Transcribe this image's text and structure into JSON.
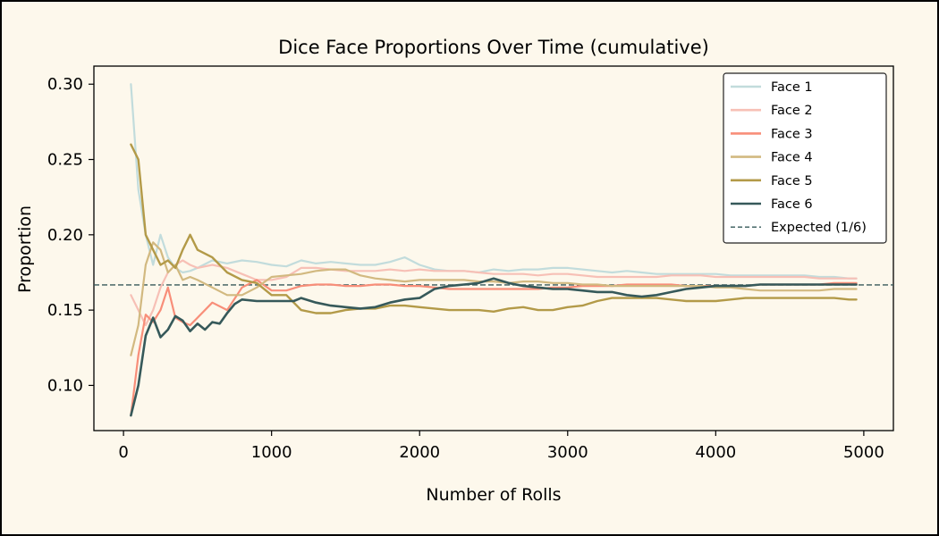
{
  "chart_data": {
    "type": "line",
    "title": "Dice Face Proportions Over Time (cumulative)",
    "xlabel": "Number of Rolls",
    "ylabel": "Proportion",
    "xlim": [
      -200,
      5200
    ],
    "ylim": [
      0.07,
      0.312
    ],
    "xticks": [
      0,
      1000,
      2000,
      3000,
      4000,
      5000
    ],
    "yticks": [
      0.1,
      0.15,
      0.2,
      0.25,
      0.3
    ],
    "grid": false,
    "legend_position": "top-right",
    "series": [
      {
        "name": "Face 1",
        "color": "#c2dcdc",
        "width": 2.2,
        "x": [
          50,
          100,
          150,
          200,
          250,
          300,
          350,
          400,
          450,
          500,
          600,
          700,
          800,
          900,
          1000,
          1100,
          1200,
          1300,
          1400,
          1500,
          1600,
          1700,
          1800,
          1900,
          2000,
          2100,
          2200,
          2300,
          2400,
          2500,
          2600,
          2700,
          2800,
          2900,
          3000,
          3100,
          3200,
          3300,
          3400,
          3500,
          3600,
          3700,
          3800,
          3900,
          4000,
          4100,
          4200,
          4300,
          4400,
          4500,
          4600,
          4700,
          4800,
          4900,
          4950
        ],
        "y": [
          0.3,
          0.23,
          0.2,
          0.18,
          0.2,
          0.185,
          0.178,
          0.175,
          0.176,
          0.178,
          0.183,
          0.181,
          0.183,
          0.182,
          0.18,
          0.179,
          0.183,
          0.181,
          0.182,
          0.181,
          0.18,
          0.18,
          0.182,
          0.185,
          0.18,
          0.177,
          0.176,
          0.176,
          0.175,
          0.177,
          0.176,
          0.177,
          0.177,
          0.178,
          0.178,
          0.177,
          0.176,
          0.175,
          0.176,
          0.175,
          0.174,
          0.174,
          0.174,
          0.174,
          0.174,
          0.173,
          0.173,
          0.173,
          0.173,
          0.173,
          0.173,
          0.172,
          0.172,
          0.171,
          0.171
        ]
      },
      {
        "name": "Face 2",
        "color": "#f7c0b6",
        "width": 2.2,
        "x": [
          50,
          100,
          150,
          200,
          250,
          300,
          350,
          400,
          450,
          500,
          600,
          700,
          800,
          900,
          1000,
          1100,
          1200,
          1300,
          1400,
          1500,
          1600,
          1700,
          1800,
          1900,
          2000,
          2100,
          2200,
          2300,
          2400,
          2500,
          2600,
          2700,
          2800,
          2900,
          3000,
          3100,
          3200,
          3300,
          3400,
          3500,
          3600,
          3700,
          3800,
          3900,
          4000,
          4100,
          4200,
          4300,
          4400,
          4500,
          4600,
          4700,
          4800,
          4900,
          4950
        ],
        "y": [
          0.16,
          0.15,
          0.14,
          0.15,
          0.165,
          0.175,
          0.18,
          0.183,
          0.18,
          0.178,
          0.18,
          0.178,
          0.174,
          0.17,
          0.17,
          0.172,
          0.178,
          0.178,
          0.177,
          0.176,
          0.176,
          0.176,
          0.177,
          0.176,
          0.177,
          0.176,
          0.176,
          0.176,
          0.175,
          0.174,
          0.174,
          0.174,
          0.173,
          0.174,
          0.174,
          0.173,
          0.172,
          0.172,
          0.172,
          0.172,
          0.172,
          0.173,
          0.173,
          0.173,
          0.172,
          0.172,
          0.172,
          0.172,
          0.172,
          0.172,
          0.172,
          0.171,
          0.171,
          0.171,
          0.171
        ]
      },
      {
        "name": "Face 3",
        "color": "#f88e79",
        "width": 2.2,
        "x": [
          50,
          100,
          150,
          200,
          250,
          300,
          350,
          400,
          450,
          500,
          600,
          700,
          800,
          900,
          1000,
          1100,
          1200,
          1300,
          1400,
          1500,
          1600,
          1700,
          1800,
          1900,
          2000,
          2100,
          2200,
          2300,
          2400,
          2500,
          2600,
          2700,
          2800,
          2900,
          3000,
          3100,
          3200,
          3300,
          3400,
          3500,
          3600,
          3700,
          3800,
          3900,
          4000,
          4100,
          4200,
          4300,
          4400,
          4500,
          4600,
          4700,
          4800,
          4900,
          4950
        ],
        "y": [
          0.08,
          0.12,
          0.147,
          0.142,
          0.15,
          0.165,
          0.145,
          0.142,
          0.14,
          0.145,
          0.155,
          0.15,
          0.165,
          0.17,
          0.163,
          0.163,
          0.166,
          0.167,
          0.167,
          0.166,
          0.166,
          0.167,
          0.167,
          0.166,
          0.166,
          0.165,
          0.164,
          0.164,
          0.164,
          0.164,
          0.164,
          0.164,
          0.164,
          0.165,
          0.165,
          0.166,
          0.166,
          0.166,
          0.167,
          0.167,
          0.167,
          0.167,
          0.166,
          0.166,
          0.166,
          0.166,
          0.166,
          0.167,
          0.167,
          0.167,
          0.167,
          0.167,
          0.168,
          0.168,
          0.168
        ]
      },
      {
        "name": "Face 4",
        "color": "#d2b980",
        "width": 2.2,
        "x": [
          50,
          100,
          150,
          200,
          250,
          300,
          350,
          400,
          450,
          500,
          600,
          700,
          800,
          900,
          1000,
          1100,
          1200,
          1300,
          1400,
          1500,
          1600,
          1700,
          1800,
          1900,
          2000,
          2100,
          2200,
          2300,
          2400,
          2500,
          2600,
          2700,
          2800,
          2900,
          3000,
          3100,
          3200,
          3300,
          3400,
          3500,
          3600,
          3700,
          3800,
          3900,
          4000,
          4100,
          4200,
          4300,
          4400,
          4500,
          4600,
          4700,
          4800,
          4900,
          4950
        ],
        "y": [
          0.12,
          0.14,
          0.18,
          0.195,
          0.19,
          0.175,
          0.18,
          0.17,
          0.172,
          0.17,
          0.165,
          0.16,
          0.16,
          0.165,
          0.172,
          0.173,
          0.174,
          0.176,
          0.177,
          0.177,
          0.173,
          0.171,
          0.17,
          0.169,
          0.17,
          0.17,
          0.17,
          0.17,
          0.169,
          0.169,
          0.168,
          0.169,
          0.169,
          0.168,
          0.168,
          0.167,
          0.167,
          0.166,
          0.166,
          0.166,
          0.166,
          0.166,
          0.166,
          0.166,
          0.165,
          0.165,
          0.164,
          0.163,
          0.163,
          0.163,
          0.163,
          0.163,
          0.164,
          0.164,
          0.164
        ]
      },
      {
        "name": "Face 5",
        "color": "#b39a48",
        "width": 2.4,
        "x": [
          50,
          100,
          150,
          200,
          250,
          300,
          350,
          400,
          450,
          500,
          600,
          700,
          800,
          900,
          1000,
          1100,
          1200,
          1300,
          1400,
          1500,
          1600,
          1700,
          1800,
          1900,
          2000,
          2100,
          2200,
          2300,
          2400,
          2500,
          2600,
          2700,
          2800,
          2900,
          3000,
          3100,
          3200,
          3300,
          3400,
          3500,
          3600,
          3700,
          3800,
          3900,
          4000,
          4100,
          4200,
          4300,
          4400,
          4500,
          4600,
          4700,
          4800,
          4900,
          4950
        ],
        "y": [
          0.26,
          0.25,
          0.2,
          0.19,
          0.18,
          0.183,
          0.178,
          0.19,
          0.2,
          0.19,
          0.185,
          0.175,
          0.17,
          0.168,
          0.16,
          0.16,
          0.15,
          0.148,
          0.148,
          0.15,
          0.151,
          0.151,
          0.153,
          0.153,
          0.152,
          0.151,
          0.15,
          0.15,
          0.15,
          0.149,
          0.151,
          0.152,
          0.15,
          0.15,
          0.152,
          0.153,
          0.156,
          0.158,
          0.158,
          0.158,
          0.158,
          0.157,
          0.156,
          0.156,
          0.156,
          0.157,
          0.158,
          0.158,
          0.158,
          0.158,
          0.158,
          0.158,
          0.158,
          0.157,
          0.157
        ]
      },
      {
        "name": "Face 6",
        "color": "#36595a",
        "width": 2.6,
        "x": [
          50,
          100,
          150,
          200,
          250,
          300,
          350,
          400,
          450,
          500,
          550,
          600,
          650,
          700,
          750,
          800,
          900,
          1000,
          1100,
          1150,
          1200,
          1300,
          1400,
          1500,
          1600,
          1700,
          1800,
          1900,
          2000,
          2100,
          2200,
          2300,
          2400,
          2500,
          2600,
          2700,
          2800,
          2900,
          3000,
          3100,
          3200,
          3300,
          3400,
          3500,
          3600,
          3700,
          3800,
          3900,
          4000,
          4100,
          4200,
          4300,
          4400,
          4500,
          4600,
          4700,
          4800,
          4900,
          4950
        ],
        "y": [
          0.08,
          0.1,
          0.133,
          0.145,
          0.132,
          0.137,
          0.146,
          0.143,
          0.136,
          0.141,
          0.137,
          0.142,
          0.141,
          0.148,
          0.154,
          0.157,
          0.156,
          0.156,
          0.156,
          0.156,
          0.158,
          0.155,
          0.153,
          0.152,
          0.151,
          0.152,
          0.155,
          0.157,
          0.158,
          0.164,
          0.166,
          0.167,
          0.168,
          0.171,
          0.168,
          0.166,
          0.165,
          0.164,
          0.164,
          0.163,
          0.162,
          0.162,
          0.16,
          0.159,
          0.16,
          0.162,
          0.164,
          0.165,
          0.166,
          0.166,
          0.166,
          0.167,
          0.167,
          0.167,
          0.167,
          0.167,
          0.167,
          0.167,
          0.167
        ]
      }
    ],
    "reference_line": {
      "name": "Expected (1/6)",
      "y": 0.1667,
      "color": "#36595a",
      "dashed": true
    }
  }
}
